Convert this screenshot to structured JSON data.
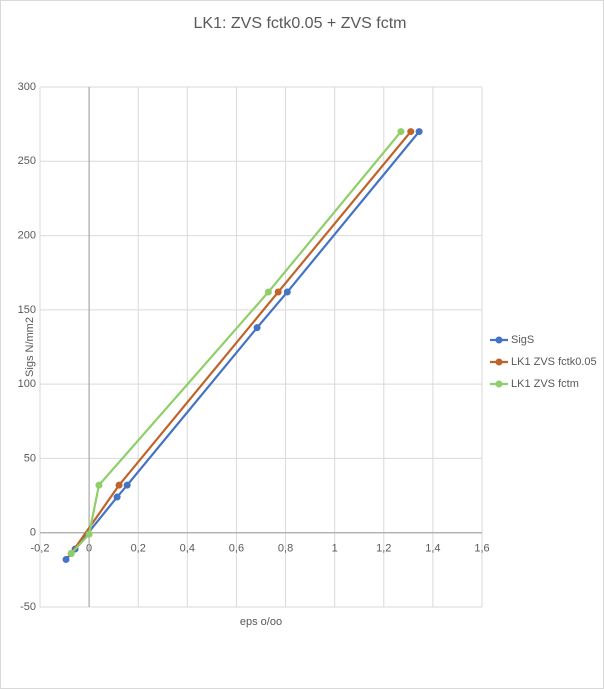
{
  "chart_data": {
    "type": "line",
    "title": "LK1:  ZVS fctk0.05 + ZVS fctm",
    "xlabel": "eps o/oo",
    "ylabel": "Sigs N/mm2",
    "xlim": [
      -0.2,
      1.6
    ],
    "xticks": [
      {
        "value": -0.2,
        "label": "-0,2"
      },
      0,
      {
        "value": 0.2,
        "label": "0,2"
      },
      {
        "value": 0.4,
        "label": "0,4"
      },
      {
        "value": 0.6,
        "label": "0,6"
      },
      {
        "value": 0.8,
        "label": "0,8"
      },
      1,
      {
        "value": 1.2,
        "label": "1,2"
      },
      {
        "value": 1.4,
        "label": "1,4"
      },
      {
        "value": 1.6,
        "label": "1,6"
      }
    ],
    "ylim": [
      -50,
      300
    ],
    "yticks": [
      -50,
      0,
      50,
      100,
      150,
      200,
      250,
      300
    ],
    "grid": true,
    "legend": "right",
    "series": [
      {
        "name": "SigS",
        "color": "#4472c4",
        "x": [
          -0.094,
          -0.057,
          0.114,
          0.155,
          0.684,
          0.807,
          1.344
        ],
        "values": [
          -18,
          -11,
          24,
          32,
          138,
          162,
          270
        ]
      },
      {
        "name": "LK1 ZVS fctk0.05",
        "color": "#c0632a",
        "x": [
          -0.073,
          0.122,
          0.77,
          1.31
        ],
        "values": [
          -14,
          32,
          162,
          270
        ]
      },
      {
        "name": "LK1 ZVS fctm",
        "color": "#8fcf6a",
        "x": [
          -0.073,
          0,
          0.04,
          0.73,
          1.27
        ],
        "values": [
          -14,
          -1,
          32,
          162,
          270
        ]
      }
    ]
  }
}
